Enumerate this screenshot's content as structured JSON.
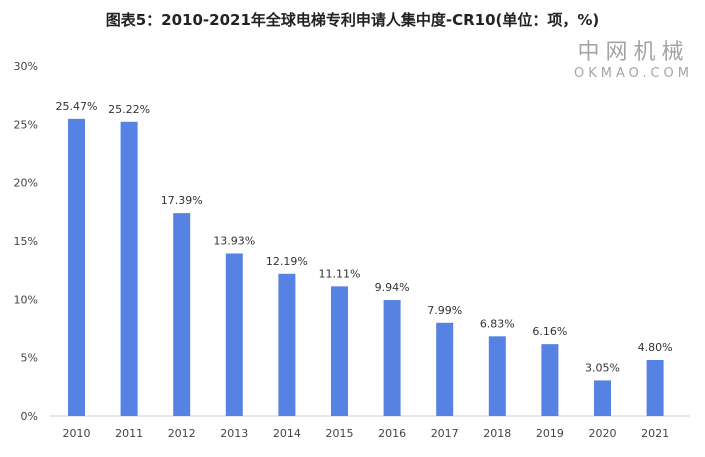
{
  "chart_data": {
    "type": "bar",
    "title": "图表5：2010-2021年全球电梯专利申请人集中度-CR10(单位：项，%)",
    "categories": [
      "2010",
      "2011",
      "2012",
      "2013",
      "2014",
      "2015",
      "2016",
      "2017",
      "2018",
      "2019",
      "2020",
      "2021"
    ],
    "values": [
      25.47,
      25.22,
      17.39,
      13.93,
      12.19,
      11.11,
      9.94,
      7.99,
      6.83,
      6.16,
      3.05,
      4.8
    ],
    "data_labels": [
      "25.47%",
      "25.22%",
      "17.39%",
      "13.93%",
      "12.19%",
      "11.11%",
      "9.94%",
      "7.99%",
      "6.83%",
      "6.16%",
      "3.05%",
      "4.80%"
    ],
    "yticks": [
      "0%",
      "5%",
      "10%",
      "15%",
      "20%",
      "25%",
      "30%"
    ],
    "ylim": [
      0,
      30
    ],
    "grid": false,
    "bar_color": "#5683E3",
    "xlabel": "",
    "ylabel": ""
  },
  "watermark": {
    "cn": "中网机械",
    "en": "OKMAO.COM"
  }
}
